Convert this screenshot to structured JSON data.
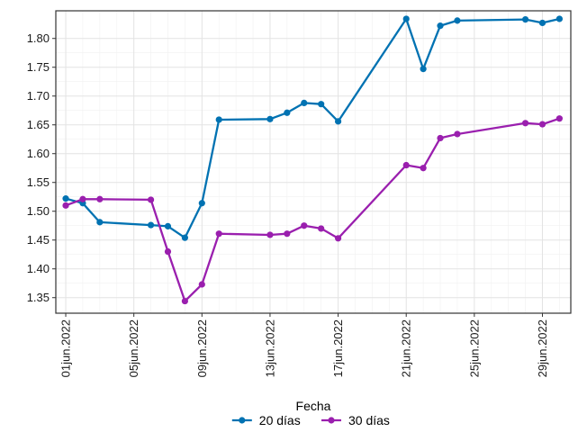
{
  "chart_data": {
    "type": "line",
    "title": "",
    "xlabel": "Fecha",
    "ylabel": "",
    "x_tick_labels": [
      "01jun.2022",
      "05jun.2022",
      "09jun.2022",
      "13jun.2022",
      "17jun.2022",
      "21jun.2022",
      "25jun.2022",
      "29jun.2022"
    ],
    "x_tick_days": [
      1,
      5,
      9,
      13,
      17,
      21,
      25,
      29
    ],
    "xlim": [
      "2022-05-31T10:00",
      "2022-06-30T16:00"
    ],
    "y_tick_labels": [
      "1.35",
      "1.40",
      "1.45",
      "1.50",
      "1.55",
      "1.60",
      "1.65",
      "1.70",
      "1.75",
      "1.80"
    ],
    "y_ticks": [
      1.35,
      1.4,
      1.45,
      1.5,
      1.55,
      1.6,
      1.65,
      1.7,
      1.75,
      1.8
    ],
    "ylim": [
      1.323,
      1.848
    ],
    "grid": true,
    "legend_position": "bottom",
    "series": [
      {
        "name": "20 días",
        "color": "#0072b2",
        "points": [
          [
            "2022-06-01",
            1.522
          ],
          [
            "2022-06-02",
            1.514
          ],
          [
            "2022-06-03",
            1.481
          ],
          [
            "2022-06-06",
            1.476
          ],
          [
            "2022-06-07",
            1.474
          ],
          [
            "2022-06-08",
            1.454
          ],
          [
            "2022-06-09",
            1.514
          ],
          [
            "2022-06-10",
            1.659
          ],
          [
            "2022-06-13",
            1.66
          ],
          [
            "2022-06-14",
            1.671
          ],
          [
            "2022-06-15",
            1.688
          ],
          [
            "2022-06-16",
            1.686
          ],
          [
            "2022-06-17",
            1.656
          ],
          [
            "2022-06-21",
            1.834
          ],
          [
            "2022-06-22",
            1.747
          ],
          [
            "2022-06-23",
            1.822
          ],
          [
            "2022-06-24",
            1.831
          ],
          [
            "2022-06-28",
            1.833
          ],
          [
            "2022-06-29",
            1.827
          ],
          [
            "2022-06-30",
            1.834
          ]
        ]
      },
      {
        "name": "30 días",
        "color": "#9a1fae",
        "points": [
          [
            "2022-06-01",
            1.51
          ],
          [
            "2022-06-02",
            1.521
          ],
          [
            "2022-06-03",
            1.521
          ],
          [
            "2022-06-06",
            1.52
          ],
          [
            "2022-06-07",
            1.43
          ],
          [
            "2022-06-08",
            1.344
          ],
          [
            "2022-06-09",
            1.373
          ],
          [
            "2022-06-10",
            1.461
          ],
          [
            "2022-06-13",
            1.459
          ],
          [
            "2022-06-14",
            1.461
          ],
          [
            "2022-06-15",
            1.475
          ],
          [
            "2022-06-16",
            1.47
          ],
          [
            "2022-06-17",
            1.453
          ],
          [
            "2022-06-21",
            1.58
          ],
          [
            "2022-06-22",
            1.575
          ],
          [
            "2022-06-23",
            1.627
          ],
          [
            "2022-06-24",
            1.634
          ],
          [
            "2022-06-28",
            1.653
          ],
          [
            "2022-06-29",
            1.651
          ],
          [
            "2022-06-30",
            1.661
          ]
        ]
      }
    ]
  }
}
